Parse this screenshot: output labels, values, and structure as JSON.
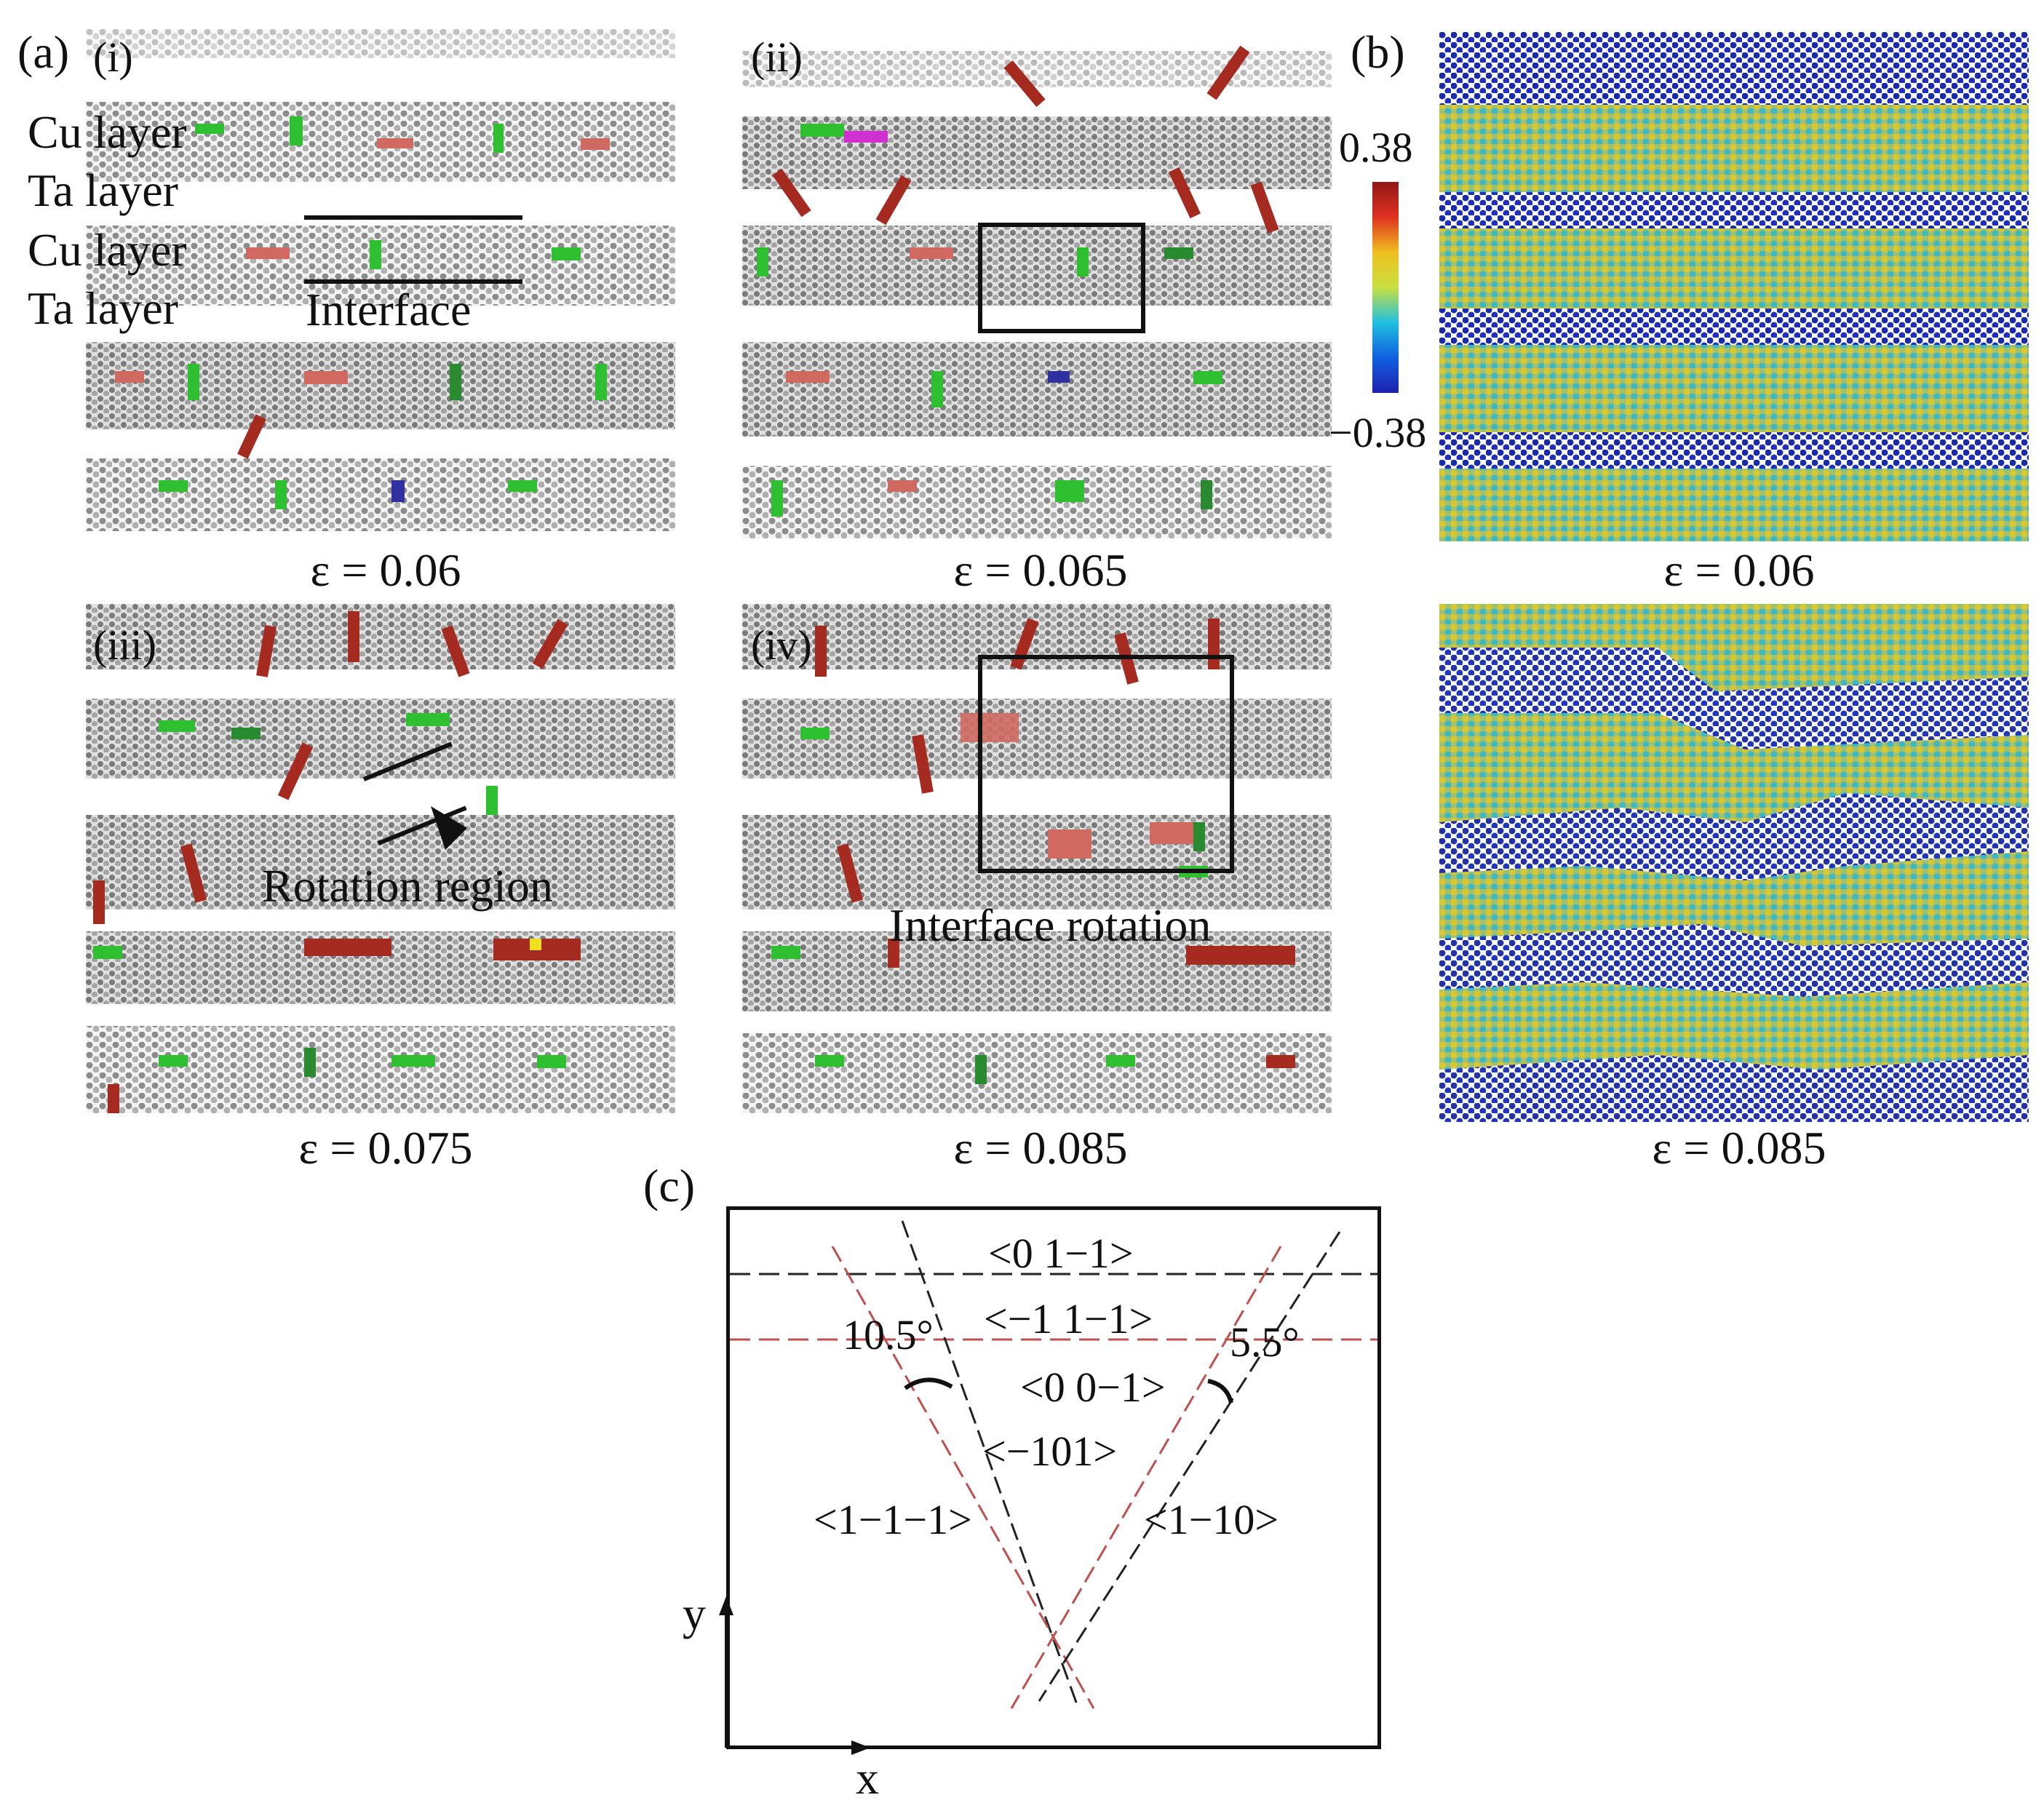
{
  "figure": {
    "panel_a": {
      "letter": "(a)",
      "sub_i": "(i)",
      "sub_ii": "(ii)",
      "sub_iii": "(iii)",
      "sub_iv": "(iv)",
      "layer_labels": [
        "Cu layer",
        "Ta layer",
        "Cu layer",
        "Ta layer"
      ],
      "interface_label": "Interface",
      "rotation_region_label": "Rotation region",
      "interface_rotation_label": "Interface rotation",
      "strain_i": "ε = 0.06",
      "strain_ii": "ε = 0.065",
      "strain_iii": "ε = 0.075",
      "strain_iv": "ε = 0.085"
    },
    "panel_b": {
      "letter": "(b)",
      "colorbar_max": "0.38",
      "colorbar_min": "−0.38",
      "strain_top": "ε = 0.06",
      "strain_bottom": "ε = 0.085",
      "colors": {
        "colorbar_stops": [
          "#2020b0",
          "#1060e0",
          "#20c0e0",
          "#c8e040",
          "#f0c020",
          "#e03020",
          "#901818"
        ]
      }
    },
    "panel_c": {
      "letter": "(c)",
      "dir_01m1": "<0 1−1>",
      "dir_m11m1": "<−1 1−1>",
      "dir_00m1": "<0 0−1>",
      "dir_m101": "<−101>",
      "dir_1m1m1": "<1−1−1>",
      "dir_1m10": "<1−10>",
      "angle_left": "10.5°",
      "angle_right": "5.5°",
      "axis_x": "x",
      "axis_y": "y"
    },
    "colors": {
      "atom_gray": "#9a9a9a",
      "cu_green": "#2ec030",
      "dark_red": "#a52a20",
      "salmon": "#d06a60",
      "dash_black": "#222222",
      "dash_red": "#c0504d"
    }
  }
}
